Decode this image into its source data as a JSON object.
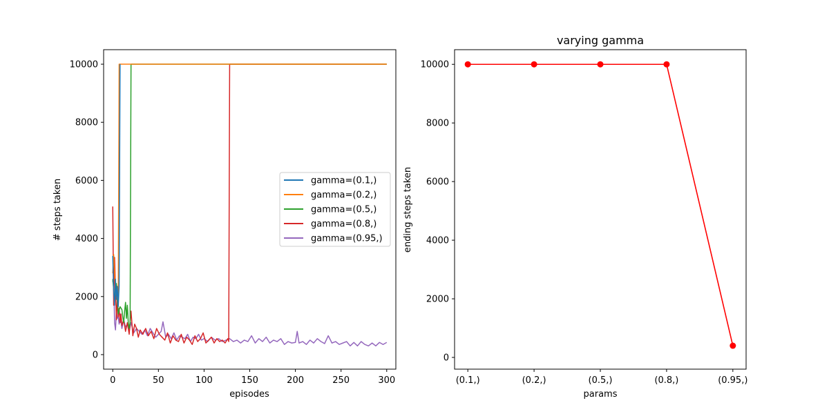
{
  "chart_data": [
    {
      "type": "line",
      "title": "",
      "xlabel": "episodes",
      "ylabel": "# steps taken",
      "xlim": [
        -10,
        310
      ],
      "ylim": [
        -500,
        10500
      ],
      "xticks": [
        0,
        50,
        100,
        150,
        200,
        250,
        300
      ],
      "yticks": [
        0,
        2000,
        4000,
        6000,
        8000,
        10000
      ],
      "grid": false,
      "legend_position": "center-right",
      "series": [
        {
          "name": "gamma=(0.1,)",
          "color": "#1f77b4",
          "x": [
            0,
            1,
            2,
            3,
            4,
            5,
            6,
            7,
            8
          ],
          "y": [
            3400,
            2200,
            1700,
            2600,
            1900,
            2350,
            1650,
            2350,
            10000
          ]
        },
        {
          "name": "gamma=(0.2,)",
          "color": "#ff7f0e",
          "x": [
            0,
            1,
            2,
            3,
            4,
            5,
            6,
            7,
            8,
            9,
            300
          ],
          "y": [
            2800,
            3450,
            2800,
            2300,
            1950,
            2200,
            1700,
            10000,
            10000,
            10000,
            10000
          ]
        },
        {
          "name": "gamma=(0.5,)",
          "color": "#2ca02c",
          "x": [
            0,
            2,
            4,
            6,
            8,
            10,
            11,
            12,
            13,
            14,
            15,
            16,
            17,
            18,
            19,
            20,
            300
          ],
          "y": [
            2600,
            1900,
            2450,
            1400,
            1650,
            1550,
            1300,
            1100,
            1500,
            1800,
            1250,
            1700,
            1100,
            900,
            1100,
            10000,
            10000
          ]
        },
        {
          "name": "gamma=(0.8,)",
          "color": "#d62728",
          "x": [
            0,
            1,
            2,
            3,
            4,
            5,
            6,
            7,
            8,
            9,
            10,
            12,
            14,
            16,
            18,
            20,
            22,
            24,
            26,
            28,
            30,
            33,
            36,
            39,
            42,
            45,
            48,
            51,
            54,
            57,
            60,
            63,
            66,
            69,
            72,
            75,
            78,
            81,
            84,
            87,
            90,
            93,
            96,
            99,
            102,
            105,
            108,
            111,
            114,
            117,
            120,
            123,
            126,
            127,
            128,
            300
          ],
          "y": [
            5100,
            1700,
            3350,
            2300,
            1200,
            1900,
            1300,
            1600,
            1100,
            1400,
            1000,
            1200,
            800,
            1100,
            700,
            1500,
            650,
            1050,
            900,
            600,
            850,
            700,
            900,
            650,
            800,
            550,
            900,
            700,
            600,
            500,
            750,
            400,
            650,
            500,
            450,
            700,
            400,
            600,
            500,
            350,
            650,
            450,
            550,
            750,
            400,
            500,
            600,
            400,
            550,
            450,
            500,
            400,
            550,
            450,
            10000,
            10000
          ]
        },
        {
          "name": "gamma=(0.95,)",
          "color": "#9467bd",
          "x": [
            0,
            1,
            2,
            3,
            4,
            5,
            6,
            7,
            8,
            10,
            12,
            14,
            16,
            18,
            20,
            23,
            26,
            29,
            32,
            35,
            38,
            41,
            44,
            47,
            50,
            53,
            55,
            58,
            61,
            64,
            67,
            70,
            73,
            76,
            79,
            82,
            85,
            88,
            91,
            94,
            97,
            100,
            104,
            108,
            112,
            116,
            120,
            124,
            128,
            132,
            136,
            140,
            144,
            148,
            152,
            156,
            160,
            164,
            168,
            172,
            176,
            180,
            184,
            188,
            192,
            196,
            200,
            202,
            204,
            208,
            212,
            216,
            220,
            224,
            228,
            232,
            236,
            240,
            244,
            248,
            252,
            256,
            260,
            264,
            268,
            272,
            276,
            280,
            284,
            288,
            292,
            296,
            300
          ],
          "y": [
            2500,
            2700,
            1100,
            850,
            1500,
            1250,
            1300,
            1050,
            1400,
            900,
            1200,
            950,
            1050,
            800,
            1100,
            750,
            900,
            800,
            700,
            850,
            650,
            900,
            750,
            600,
            700,
            800,
            1130,
            600,
            700,
            550,
            750,
            500,
            650,
            600,
            550,
            700,
            450,
            600,
            550,
            700,
            500,
            550,
            450,
            600,
            500,
            550,
            450,
            500,
            550,
            450,
            500,
            400,
            500,
            450,
            650,
            400,
            550,
            450,
            600,
            400,
            500,
            450,
            550,
            350,
            450,
            400,
            420,
            800,
            400,
            450,
            350,
            500,
            400,
            550,
            450,
            380,
            650,
            400,
            450,
            350,
            400,
            450,
            300,
            420,
            300,
            450,
            350,
            300,
            400,
            300,
            420,
            350,
            420
          ]
        }
      ]
    },
    {
      "type": "line",
      "title": "varying gamma",
      "xlabel": "params",
      "ylabel": "ending steps taken",
      "categories": [
        "(0.1,)",
        "(0.2,)",
        "(0.5,)",
        "(0.8,)",
        "(0.95,)"
      ],
      "ylim": [
        -400,
        10500
      ],
      "yticks": [
        0,
        2000,
        4000,
        6000,
        8000,
        10000
      ],
      "grid": false,
      "series": [
        {
          "color": "#ff0000",
          "marker": "circle",
          "values": [
            10000,
            10000,
            10000,
            10000,
            400
          ]
        }
      ]
    }
  ]
}
